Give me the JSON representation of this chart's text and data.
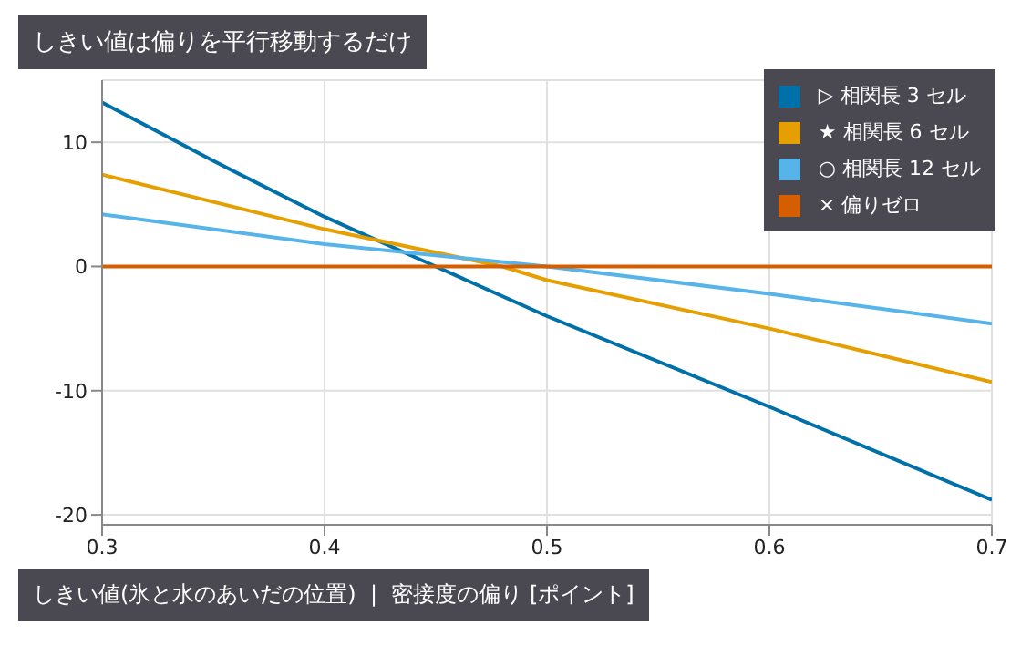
{
  "chart_data": {
    "type": "line",
    "title": "しきい値は偏りを平行移動するだけ",
    "xlabel": "しきい値(氷と水のあいだの位置)  |  密接度の偏り [ポイント]",
    "series": [
      {
        "name": "▷ 相関長 3 セル",
        "color": "#0070a8",
        "x": [
          0.3,
          0.35,
          0.4,
          0.45,
          0.5,
          0.6,
          0.7
        ],
        "values": [
          13.2,
          8.5,
          4.0,
          0.0,
          -4.0,
          -11.3,
          -18.8
        ]
      },
      {
        "name": "★ 相関長 6 セル",
        "color": "#e69f00",
        "x": [
          0.3,
          0.4,
          0.48,
          0.5,
          0.6,
          0.7
        ],
        "values": [
          7.4,
          3.0,
          0.0,
          -1.1,
          -5.0,
          -9.3
        ]
      },
      {
        "name": "○ 相関長 12 セル",
        "color": "#56b4e9",
        "x": [
          0.3,
          0.4,
          0.5,
          0.6,
          0.7
        ],
        "values": [
          4.2,
          1.8,
          0.0,
          -2.2,
          -4.6
        ]
      },
      {
        "name": "× 偏りゼロ",
        "color": "#d55e00",
        "x": [
          0.3,
          0.7
        ],
        "values": [
          0,
          0
        ]
      }
    ],
    "xlim": [
      0.3,
      0.7
    ],
    "xticks": [
      0.3,
      0.4,
      0.5,
      0.6,
      0.7
    ],
    "ylim": [
      -20.8,
      15
    ],
    "yticks": [
      -20,
      -10,
      0,
      10
    ],
    "grid": true,
    "legend": "top right",
    "marker": "none",
    "line_style": "solid"
  }
}
